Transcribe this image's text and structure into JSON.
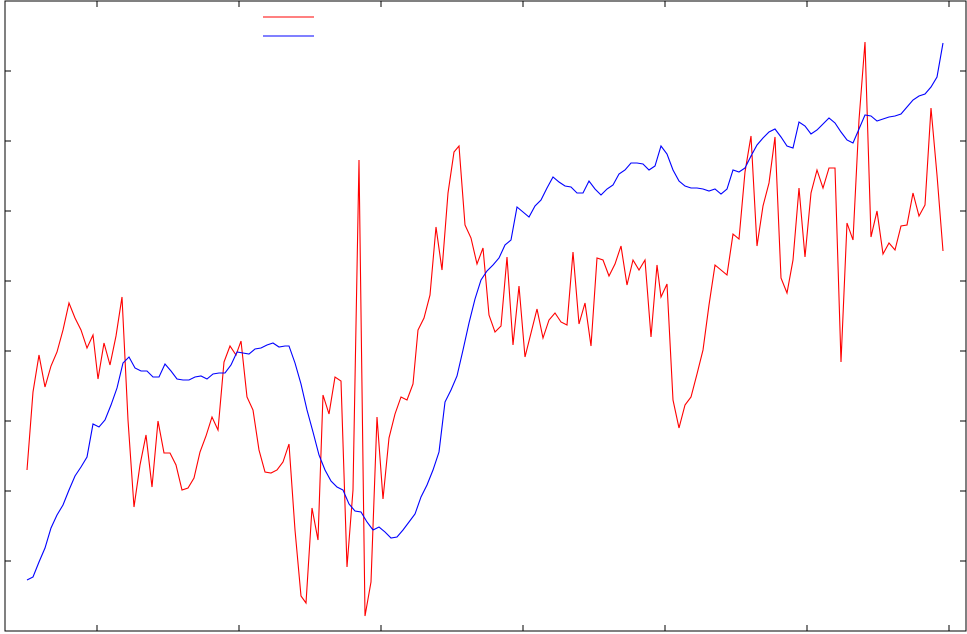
{
  "chart_data": {
    "type": "line",
    "xlim": [
      5,
      966
    ],
    "xticks": [
      97,
      239,
      381,
      523,
      665,
      807,
      949
    ],
    "ylim": [
      0,
      630
    ],
    "yticks": [
      70,
      140,
      210,
      280,
      350,
      420,
      490,
      560
    ],
    "grid": false,
    "legend": "top",
    "series": [
      {
        "color": "#ff0000",
        "x": [
          27,
          33,
          39,
          45,
          51,
          57,
          63,
          69,
          75,
          81,
          87,
          93,
          98,
          104,
          110,
          116,
          122,
          128,
          134,
          140,
          146,
          152,
          158,
          164,
          170,
          176,
          182,
          188,
          194,
          200,
          206,
          212,
          218,
          224,
          230,
          236,
          241,
          247,
          253,
          259,
          265,
          271,
          277,
          283,
          289,
          295,
          301,
          306,
          312,
          318,
          323,
          329,
          335,
          341,
          347,
          353,
          359,
          365,
          371,
          377,
          383,
          389,
          395,
          401,
          407,
          413,
          418,
          424,
          430,
          436,
          442,
          448,
          454,
          459,
          465,
          471,
          477,
          483,
          489,
          495,
          501,
          507,
          513,
          519,
          525,
          531,
          537,
          543,
          549,
          555,
          561,
          567,
          573,
          579,
          585,
          591,
          597,
          603,
          609,
          615,
          621,
          627,
          633,
          639,
          645,
          651,
          657,
          661,
          667,
          673,
          679,
          685,
          691,
          697,
          703,
          709,
          715,
          721,
          727,
          733,
          739,
          745,
          751,
          757,
          763,
          769,
          775,
          781,
          787,
          793,
          799,
          805,
          811,
          817,
          823,
          829,
          835,
          841,
          847,
          853,
          859,
          865,
          871,
          877,
          883,
          889,
          895,
          901,
          907,
          913,
          919,
          925,
          931,
          937,
          943
        ],
        "values": [
          161,
          239,
          276,
          244,
          265,
          279,
          301,
          328,
          313,
          301,
          283,
          296,
          252,
          288,
          266,
          295,
          334,
          211,
          124,
          166,
          196,
          144,
          210,
          178,
          178,
          166,
          141,
          143,
          153,
          179,
          195,
          214,
          201,
          269,
          285,
          276,
          290,
          234,
          221,
          181,
          159,
          158,
          161,
          169,
          187,
          101,
          35,
          28,
          123,
          91,
          236,
          217,
          254,
          250,
          64,
          141,
          471,
          15,
          49,
          214,
          132,
          193,
          217,
          234,
          231,
          247,
          301,
          313,
          336,
          404,
          361,
          438,
          479,
          485,
          406,
          393,
          367,
          383,
          316,
          299,
          305,
          374,
          286,
          345,
          274,
          298,
          322,
          293,
          311,
          318,
          309,
          306,
          379,
          307,
          328,
          285,
          373,
          371,
          355,
          367,
          385,
          346,
          371,
          361,
          371,
          294,
          366,
          334,
          347,
          231,
          203,
          226,
          234,
          257,
          281,
          326,
          366,
          361,
          356,
          397,
          392,
          459,
          495,
          385,
          425,
          448,
          494,
          353,
          338,
          371,
          443,
          374,
          438,
          461,
          443,
          463,
          463,
          269,
          408,
          391,
          511,
          589,
          394,
          420,
          377,
          388,
          381,
          405,
          406,
          438,
          415,
          426,
          523,
          456,
          380
        ]
      },
      {
        "color": "#0000ff",
        "x": [
          27,
          33,
          39,
          45,
          51,
          57,
          63,
          69,
          75,
          81,
          87,
          93,
          99,
          105,
          111,
          117,
          123,
          129,
          135,
          141,
          147,
          153,
          159,
          165,
          171,
          177,
          183,
          189,
          195,
          201,
          207,
          213,
          219,
          225,
          231,
          237,
          243,
          249,
          255,
          261,
          267,
          273,
          279,
          285,
          289,
          295,
          301,
          307,
          313,
          319,
          325,
          331,
          337,
          343,
          349,
          355,
          361,
          367,
          373,
          379,
          385,
          391,
          397,
          403,
          409,
          415,
          421,
          427,
          433,
          439,
          445,
          451,
          457,
          463,
          469,
          475,
          481,
          487,
          493,
          499,
          505,
          511,
          517,
          523,
          529,
          535,
          541,
          547,
          553,
          559,
          565,
          571,
          577,
          583,
          589,
          595,
          601,
          607,
          613,
          619,
          625,
          631,
          637,
          643,
          649,
          655,
          661,
          667,
          673,
          679,
          685,
          691,
          697,
          703,
          709,
          715,
          721,
          727,
          733,
          739,
          745,
          751,
          757,
          763,
          769,
          775,
          781,
          787,
          793,
          799,
          805,
          811,
          817,
          823,
          829,
          835,
          841,
          847,
          853,
          859,
          865,
          871,
          877,
          883,
          889,
          895,
          901,
          907,
          913,
          919,
          925,
          931,
          937,
          943
        ],
        "values": [
          51,
          54,
          69,
          83,
          103,
          116,
          126,
          141,
          155,
          164,
          174,
          207,
          204,
          211,
          226,
          243,
          268,
          274,
          263,
          260,
          260,
          254,
          254,
          267,
          260,
          252,
          251,
          251,
          254,
          255,
          252,
          257,
          258,
          258,
          266,
          279,
          278,
          277,
          282,
          283,
          286,
          288,
          284,
          285,
          285,
          268,
          247,
          221,
          199,
          176,
          161,
          150,
          144,
          141,
          127,
          120,
          119,
          109,
          101,
          104,
          99,
          93,
          94,
          101,
          109,
          117,
          134,
          146,
          161,
          179,
          229,
          241,
          255,
          281,
          308,
          332,
          351,
          360,
          366,
          373,
          386,
          391,
          424,
          419,
          414,
          425,
          431,
          443,
          454,
          449,
          445,
          444,
          438,
          438,
          450,
          442,
          436,
          442,
          446,
          457,
          461,
          468,
          468,
          467,
          461,
          465,
          485,
          477,
          461,
          450,
          445,
          443,
          443,
          442,
          440,
          442,
          437,
          442,
          461,
          459,
          463,
          475,
          486,
          493,
          499,
          502,
          494,
          485,
          483,
          509,
          505,
          497,
          501,
          507,
          513,
          508,
          499,
          491,
          488,
          502,
          516,
          515,
          510,
          512,
          514,
          515,
          517,
          524,
          531,
          535,
          537,
          544,
          554,
          588
        ]
      }
    ]
  }
}
